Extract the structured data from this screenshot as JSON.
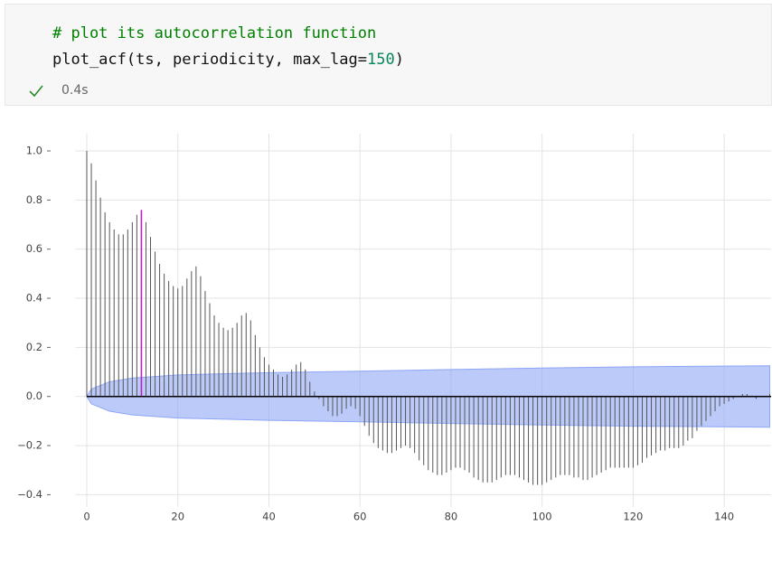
{
  "cell": {
    "code": {
      "comment": "# plot its autocorrelation function",
      "call": [
        "plot_acf(ts, periodicity, max_lag=",
        "150",
        ")"
      ]
    },
    "status": "0.4s"
  },
  "chart_data": {
    "type": "stem",
    "x": [
      0,
      1,
      2,
      3,
      4,
      5,
      6,
      7,
      8,
      9,
      10,
      11,
      12,
      13,
      14,
      15,
      16,
      17,
      18,
      19,
      20,
      21,
      22,
      23,
      24,
      25,
      26,
      27,
      28,
      29,
      30,
      31,
      32,
      33,
      34,
      35,
      36,
      37,
      38,
      39,
      40,
      41,
      42,
      43,
      44,
      45,
      46,
      47,
      48,
      49,
      50,
      51,
      52,
      53,
      54,
      55,
      56,
      57,
      58,
      59,
      60,
      61,
      62,
      63,
      64,
      65,
      66,
      67,
      68,
      69,
      70,
      71,
      72,
      73,
      74,
      75,
      76,
      77,
      78,
      79,
      80,
      81,
      82,
      83,
      84,
      85,
      86,
      87,
      88,
      89,
      90,
      91,
      92,
      93,
      94,
      95,
      96,
      97,
      98,
      99,
      100,
      101,
      102,
      103,
      104,
      105,
      106,
      107,
      108,
      109,
      110,
      111,
      112,
      113,
      114,
      115,
      116,
      117,
      118,
      119,
      120,
      121,
      122,
      123,
      124,
      125,
      126,
      127,
      128,
      129,
      130,
      131,
      132,
      133,
      134,
      135,
      136,
      137,
      138,
      139,
      140,
      141,
      142,
      143,
      144,
      145,
      146,
      147,
      148,
      149,
      150
    ],
    "values": [
      1.0,
      0.95,
      0.88,
      0.81,
      0.75,
      0.71,
      0.68,
      0.66,
      0.66,
      0.68,
      0.71,
      0.74,
      0.76,
      0.71,
      0.65,
      0.59,
      0.54,
      0.5,
      0.47,
      0.45,
      0.44,
      0.45,
      0.48,
      0.51,
      0.53,
      0.49,
      0.43,
      0.38,
      0.33,
      0.3,
      0.28,
      0.27,
      0.28,
      0.3,
      0.33,
      0.34,
      0.31,
      0.25,
      0.2,
      0.16,
      0.13,
      0.11,
      0.09,
      0.08,
      0.09,
      0.11,
      0.13,
      0.14,
      0.11,
      0.06,
      0.02,
      -0.01,
      -0.04,
      -0.06,
      -0.08,
      -0.08,
      -0.07,
      -0.05,
      -0.04,
      -0.05,
      -0.08,
      -0.12,
      -0.16,
      -0.19,
      -0.21,
      -0.22,
      -0.23,
      -0.23,
      -0.22,
      -0.21,
      -0.2,
      -0.21,
      -0.23,
      -0.26,
      -0.28,
      -0.3,
      -0.31,
      -0.32,
      -0.32,
      -0.31,
      -0.3,
      -0.29,
      -0.29,
      -0.3,
      -0.31,
      -0.33,
      -0.34,
      -0.35,
      -0.35,
      -0.35,
      -0.34,
      -0.33,
      -0.32,
      -0.32,
      -0.32,
      -0.33,
      -0.34,
      -0.35,
      -0.36,
      -0.36,
      -0.36,
      -0.35,
      -0.34,
      -0.33,
      -0.32,
      -0.32,
      -0.32,
      -0.33,
      -0.33,
      -0.34,
      -0.34,
      -0.33,
      -0.32,
      -0.31,
      -0.3,
      -0.29,
      -0.29,
      -0.29,
      -0.29,
      -0.29,
      -0.29,
      -0.28,
      -0.27,
      -0.25,
      -0.24,
      -0.23,
      -0.22,
      -0.22,
      -0.21,
      -0.21,
      -0.21,
      -0.2,
      -0.18,
      -0.17,
      -0.14,
      -0.12,
      -0.1,
      -0.08,
      -0.06,
      -0.04,
      -0.03,
      -0.02,
      -0.01,
      0.0,
      0.01,
      0.01,
      0.0,
      -0.01,
      0.0,
      0.0,
      0.01
    ],
    "color": "#555555",
    "highlight_lag": 12,
    "highlight_color": "#c020c0",
    "band": {
      "x": [
        0,
        1,
        5,
        10,
        20,
        40,
        60,
        80,
        100,
        120,
        150
      ],
      "upper": [
        0,
        0.03,
        0.06,
        0.075,
        0.088,
        0.097,
        0.103,
        0.11,
        0.116,
        0.121,
        0.125
      ],
      "lower": [
        0,
        -0.03,
        -0.06,
        -0.075,
        -0.088,
        -0.097,
        -0.103,
        -0.11,
        -0.116,
        -0.121,
        -0.125
      ],
      "color": "#8ea6f5"
    },
    "xlim": [
      -2.5,
      150.3
    ],
    "ylim": [
      -0.45,
      1.07
    ],
    "xticks": [
      0,
      20,
      40,
      60,
      80,
      100,
      120,
      140
    ],
    "yticks": [
      {
        "value": 1.0,
        "label": "1.0"
      },
      {
        "value": 0.8,
        "label": "0.8"
      },
      {
        "value": 0.6,
        "label": "0.6"
      },
      {
        "value": 0.4,
        "label": "0.4"
      },
      {
        "value": 0.2,
        "label": "0.2"
      },
      {
        "value": 0,
        "label": "0.0"
      },
      {
        "value": -0.2,
        "label": "−0.2"
      },
      {
        "value": -0.4,
        "label": "−0.4"
      }
    ],
    "grid": true
  }
}
